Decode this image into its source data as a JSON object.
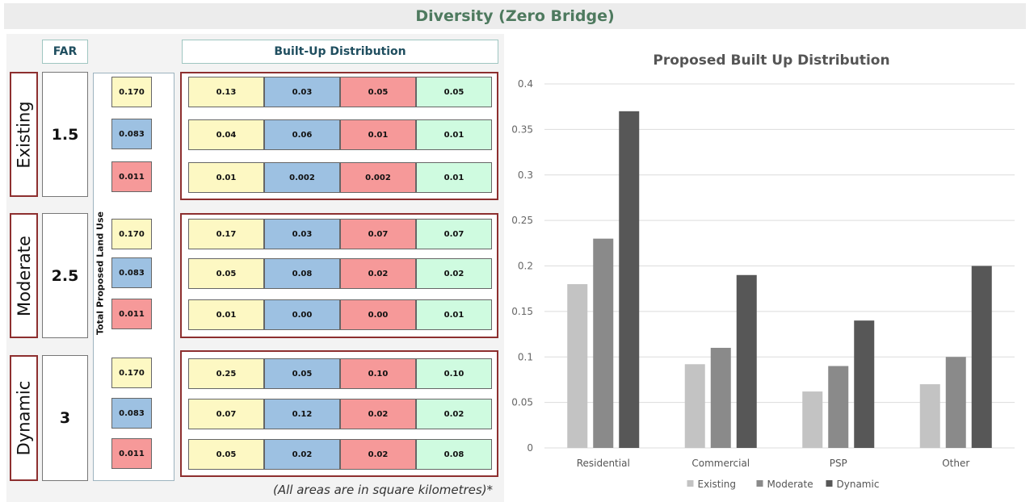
{
  "page_title": "Diversity (Zero Bridge)",
  "headers": {
    "far": "FAR",
    "distribution": "Built-Up Distribution"
  },
  "land_use_label": "Total Proposed Land Use",
  "note": "(All areas are in square kilometres)*",
  "colors": {
    "yellow": "#fdf8c3",
    "blue": "#9dc1e2",
    "red": "#f69999",
    "green": "#cffbe0",
    "frame": "#8d2f2f",
    "title_green": "#4e7a5f"
  },
  "scenarios": [
    {
      "name": "Existing",
      "far": "1.5",
      "rows": [
        {
          "total": "0.170",
          "values": [
            "0.13",
            "0.03",
            "0.05",
            "0.05"
          ]
        },
        {
          "total": "0.083",
          "values": [
            "0.04",
            "0.06",
            "0.01",
            "0.01"
          ]
        },
        {
          "total": "0.011",
          "values": [
            "0.01",
            "0.002",
            "0.002",
            "0.01"
          ]
        }
      ]
    },
    {
      "name": "Moderate",
      "far": "2.5",
      "rows": [
        {
          "total": "0.170",
          "values": [
            "0.17",
            "0.03",
            "0.07",
            "0.07"
          ]
        },
        {
          "total": "0.083",
          "values": [
            "0.05",
            "0.08",
            "0.02",
            "0.02"
          ]
        },
        {
          "total": "0.011",
          "values": [
            "0.01",
            "0.00",
            "0.00",
            "0.01"
          ]
        }
      ]
    },
    {
      "name": "Dynamic",
      "far": "3",
      "rows": [
        {
          "total": "0.170",
          "values": [
            "0.25",
            "0.05",
            "0.10",
            "0.10"
          ]
        },
        {
          "total": "0.083",
          "values": [
            "0.07",
            "0.12",
            "0.02",
            "0.02"
          ]
        },
        {
          "total": "0.011",
          "values": [
            "0.05",
            "0.02",
            "0.02",
            "0.08"
          ]
        }
      ]
    }
  ],
  "chart_data": {
    "type": "bar",
    "title": "Proposed Built Up Distribution",
    "categories": [
      "Residential",
      "Commercial",
      "PSP",
      "Other"
    ],
    "series": [
      {
        "name": "Existing",
        "values": [
          0.18,
          0.092,
          0.062,
          0.07
        ],
        "color": "#c3c3c3"
      },
      {
        "name": "Moderate",
        "values": [
          0.23,
          0.11,
          0.09,
          0.1
        ],
        "color": "#8a8a8a"
      },
      {
        "name": "Dynamic",
        "values": [
          0.37,
          0.19,
          0.14,
          0.2
        ],
        "color": "#575757"
      }
    ],
    "yticks": [
      "0",
      "0.05",
      "0.1",
      "0.15",
      "0.2",
      "0.25",
      "0.3",
      "0.35",
      "0.4"
    ],
    "ylim": [
      0,
      0.4
    ],
    "grid": true,
    "legend": "bottom"
  }
}
